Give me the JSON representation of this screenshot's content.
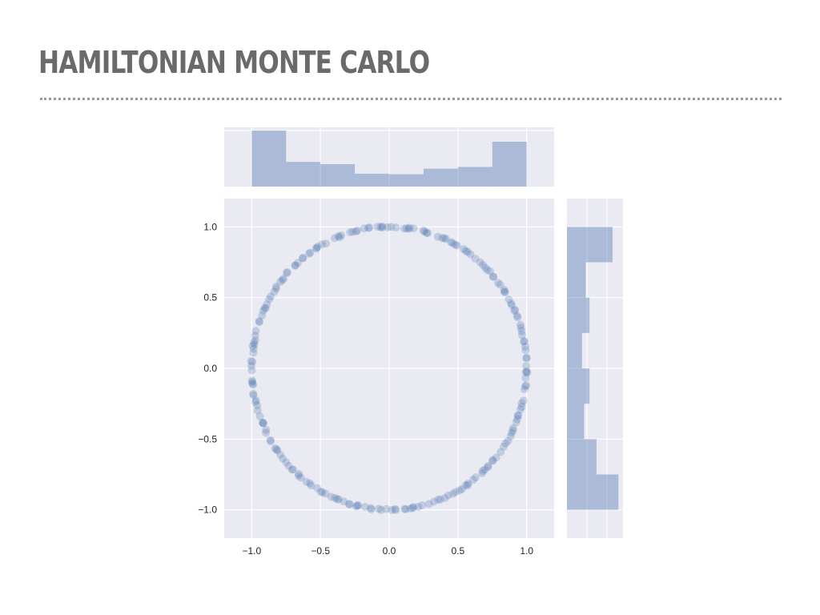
{
  "slide": {
    "title": "HAMILTONIAN MONTE CARLO"
  },
  "colors": {
    "panel_background": "#eaeaf2",
    "grid": "#ffffff",
    "point": "#4c72b0",
    "histogram": "#4c72b0",
    "title": "#6a6a6a"
  },
  "chart_data": {
    "type": "scatter",
    "title": "",
    "xlabel": "",
    "ylabel": "",
    "style": "joint plot: scatter with marginal histograms (top: x, right: y)",
    "xlim": [
      -1.2,
      1.2
    ],
    "ylim": [
      -1.2,
      1.2
    ],
    "xticks": [
      -1.0,
      -0.5,
      0.0,
      0.5,
      1.0
    ],
    "yticks": [
      -1.0,
      -0.5,
      0.0,
      0.5,
      1.0
    ],
    "xtick_labels": [
      "−1.0",
      "−0.5",
      "0.0",
      "0.5",
      "1.0"
    ],
    "ytick_labels": [
      "−1.0",
      "−0.5",
      "0.0",
      "0.5",
      "1.0"
    ],
    "grid": true,
    "point_alpha": 0.25,
    "point_count": 220,
    "points_description": "samples lying on the unit circle x^2 + y^2 = 1",
    "marginal_x_histogram": {
      "bin_edges": [
        -1.0,
        -0.75,
        -0.5,
        -0.25,
        0.0,
        0.25,
        0.5,
        0.75,
        1.0
      ],
      "relative_heights": [
        1.0,
        0.44,
        0.4,
        0.23,
        0.22,
        0.32,
        0.35,
        0.8
      ]
    },
    "marginal_y_histogram": {
      "bin_edges": [
        -1.0,
        -0.75,
        -0.5,
        -0.25,
        0.0,
        0.25,
        0.5,
        0.75,
        1.0
      ],
      "relative_heights": [
        0.96,
        0.55,
        0.32,
        0.42,
        0.28,
        0.42,
        0.35,
        0.85
      ]
    }
  }
}
